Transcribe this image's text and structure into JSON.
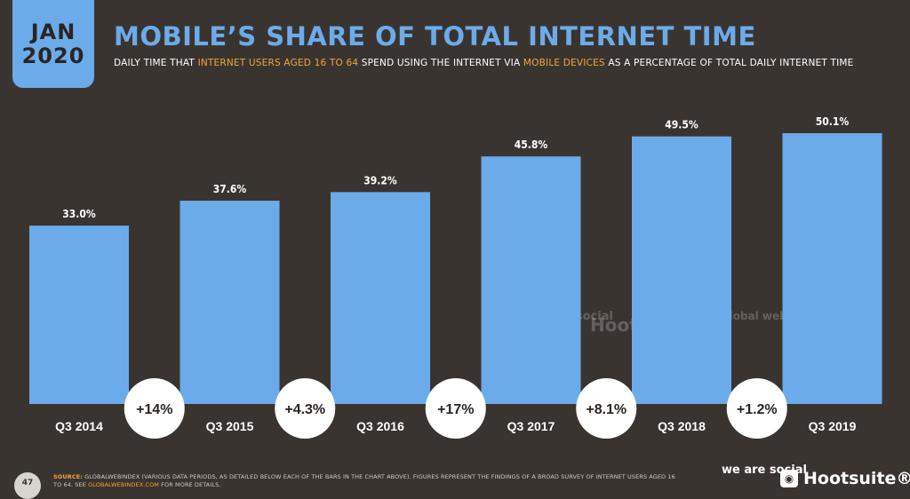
{
  "header": {
    "date_month": "JAN",
    "date_year": "2020",
    "title": "MOBILE’S SHARE OF TOTAL INTERNET TIME",
    "subtitle_part1": "DAILY TIME THAT ",
    "subtitle_hl1": "INTERNET USERS AGED 16 TO 64",
    "subtitle_part2": " SPEND USING THE INTERNET VIA ",
    "subtitle_hl2": "MOBILE DEVICES",
    "subtitle_part3": " AS A PERCENTAGE OF TOTAL DAILY INTERNET TIME"
  },
  "colors": {
    "background": "#3a3430",
    "bar": "#6cabea",
    "accent": "#f3a43a",
    "bubble": "#ffffff",
    "text_dark": "#2a2522"
  },
  "chart_data": {
    "type": "bar",
    "categories": [
      "Q3 2014",
      "Q3 2015",
      "Q3 2016",
      "Q3 2017",
      "Q3 2018",
      "Q3 2019"
    ],
    "values": [
      33.0,
      37.6,
      39.2,
      45.8,
      49.5,
      50.1
    ],
    "value_labels": [
      "33.0%",
      "37.6%",
      "39.2%",
      "45.8%",
      "49.5%",
      "50.1%"
    ],
    "changes": [
      "+14%",
      "+4.3%",
      "+17%",
      "+8.1%",
      "+1.2%"
    ],
    "ylim": [
      0,
      55
    ],
    "grid": false
  },
  "watermarks": {
    "weare": "we are social",
    "hootsuite": "Hootsuite",
    "gwi": "global web index"
  },
  "footer": {
    "page_number": "47",
    "source_label": "SOURCE:",
    "source_text": " GLOBALWEBINDEX (VARIOUS DATA PERIODS, AS DETAILED BELOW EACH OF THE BARS IN THE CHART ABOVE). FIGURES REPRESENT THE FINDINGS OF A BROAD SURVEY OF INTERNET USERS AGED 16 TO 64. SEE ",
    "source_link": "GLOBALWEBINDEX.COM",
    "source_end": " FOR MORE DETAILS.",
    "brand_weare": "we are social",
    "brand_hootsuite": "Hootsuite®"
  }
}
